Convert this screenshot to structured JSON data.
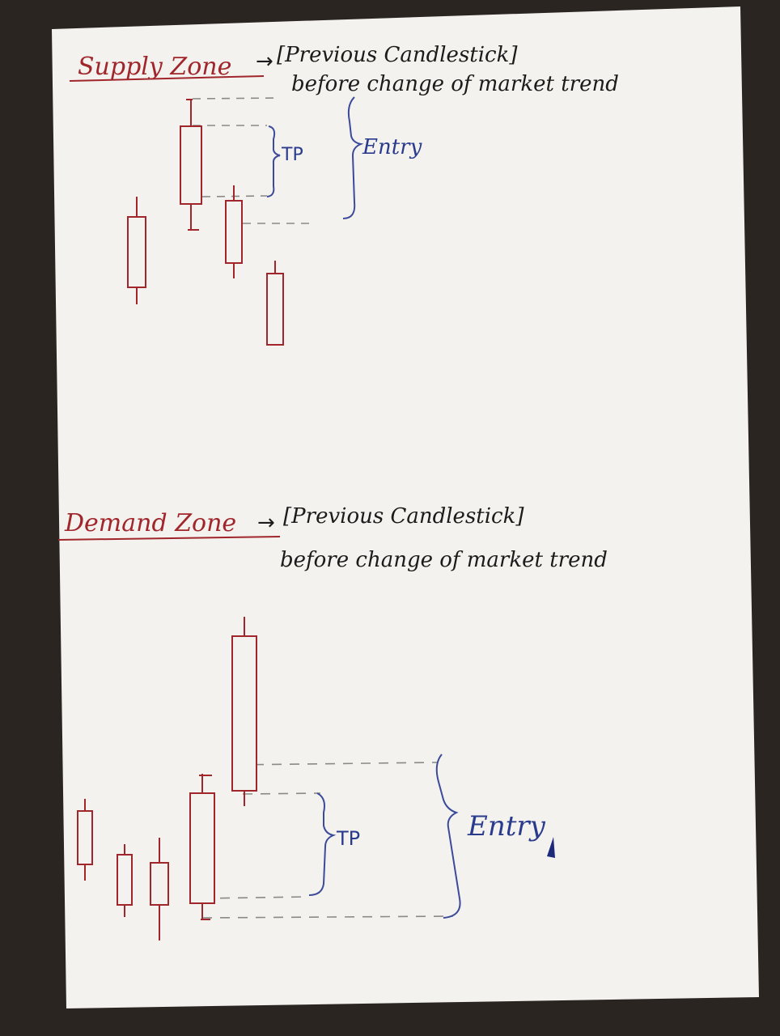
{
  "supply": {
    "zone_label": "Supply Zone",
    "arrow": "→",
    "bracket_text": "[Previous Candlestick]",
    "subtext": "before change of market trend",
    "tp_label": "TP",
    "entry_label": "Entry"
  },
  "demand": {
    "zone_label": "Demand Zone",
    "arrow": "→",
    "bracket_text": "[Previous Candlestick]",
    "subtext": "before change of market trend",
    "tp_label": "TP",
    "entry_label": "Entry"
  },
  "colors": {
    "paper": "#f3f2ee",
    "candle_ink": "#a0262b",
    "text_ink": "#1b1b1b",
    "blue_ink": "#2a3a8c",
    "dash": "#8a8a8a",
    "background": "#2b2522"
  },
  "candles": {
    "supply": [
      {
        "body": [
          268,
          355
        ],
        "wick": [
          243,
          376
        ]
      },
      {
        "body": [
          156,
          252
        ],
        "wick": [
          122,
          285
        ]
      },
      {
        "body": [
          248,
          325
        ],
        "wick": [
          229,
          344
        ]
      },
      {
        "body": [
          338,
          426
        ],
        "wick": [
          322,
          426
        ]
      }
    ],
    "demand": [
      {
        "body": [
          1002,
          1068
        ],
        "wick": [
          987,
          1088
        ]
      },
      {
        "body": [
          1056,
          1118
        ],
        "wick": [
          1043,
          1133
        ]
      },
      {
        "body": [
          1066,
          1118
        ],
        "wick": [
          1035,
          1162
        ]
      },
      {
        "body": [
          980,
          1116
        ],
        "wick": [
          956,
          1136
        ]
      },
      {
        "body": [
          786,
          977
        ],
        "wick": [
          762,
          996
        ]
      }
    ]
  }
}
